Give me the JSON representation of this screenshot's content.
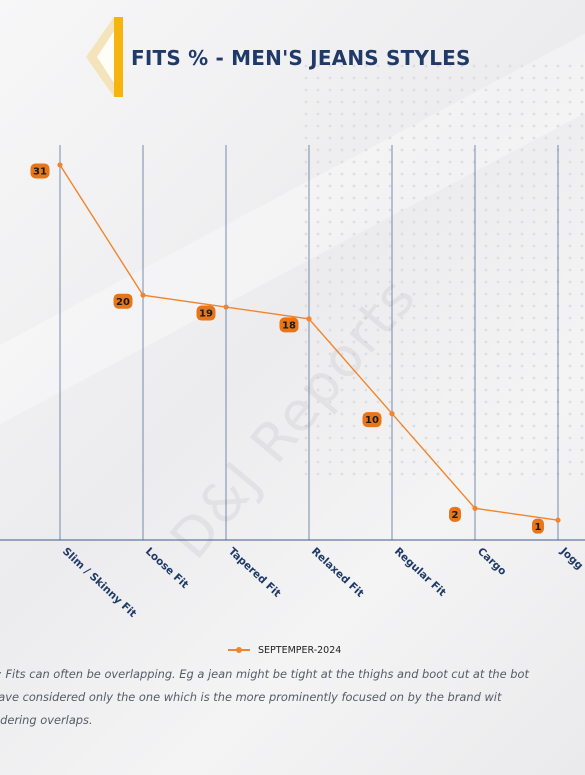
{
  "header": {
    "title": "FITS % - MEN'S JEANS STYLES"
  },
  "colors": {
    "line": "#f0852d",
    "accent": "#f6b40e",
    "title": "#1f3a68",
    "axis": "#3b5b8a"
  },
  "chart_data": {
    "type": "line",
    "title": "FITS % - MEN'S JEANS STYLES",
    "categories": [
      "Slim / Skinny Fit",
      "Loose Fit",
      "Tapered Fit",
      "Relaxed Fit",
      "Regular Fit",
      "Cargo",
      "Jogg"
    ],
    "series": [
      {
        "name": "SEPTEMPER-2024",
        "values": [
          31,
          20,
          19,
          18,
          10,
          2,
          1
        ]
      }
    ],
    "ylim": [
      0,
      35
    ],
    "grid": "vertical",
    "legend": "bottom"
  },
  "legend": {
    "label": "SEPTEMPER-2024"
  },
  "note": {
    "lines": [
      "e: Fits can often be overlapping. Eg a jean might be tight at the thighs and boot cut at the bot",
      "have considered only the one which is the more prominently focused on by the brand wit",
      "sidering overlaps."
    ]
  },
  "watermark": {
    "text": "D&J Reports"
  }
}
